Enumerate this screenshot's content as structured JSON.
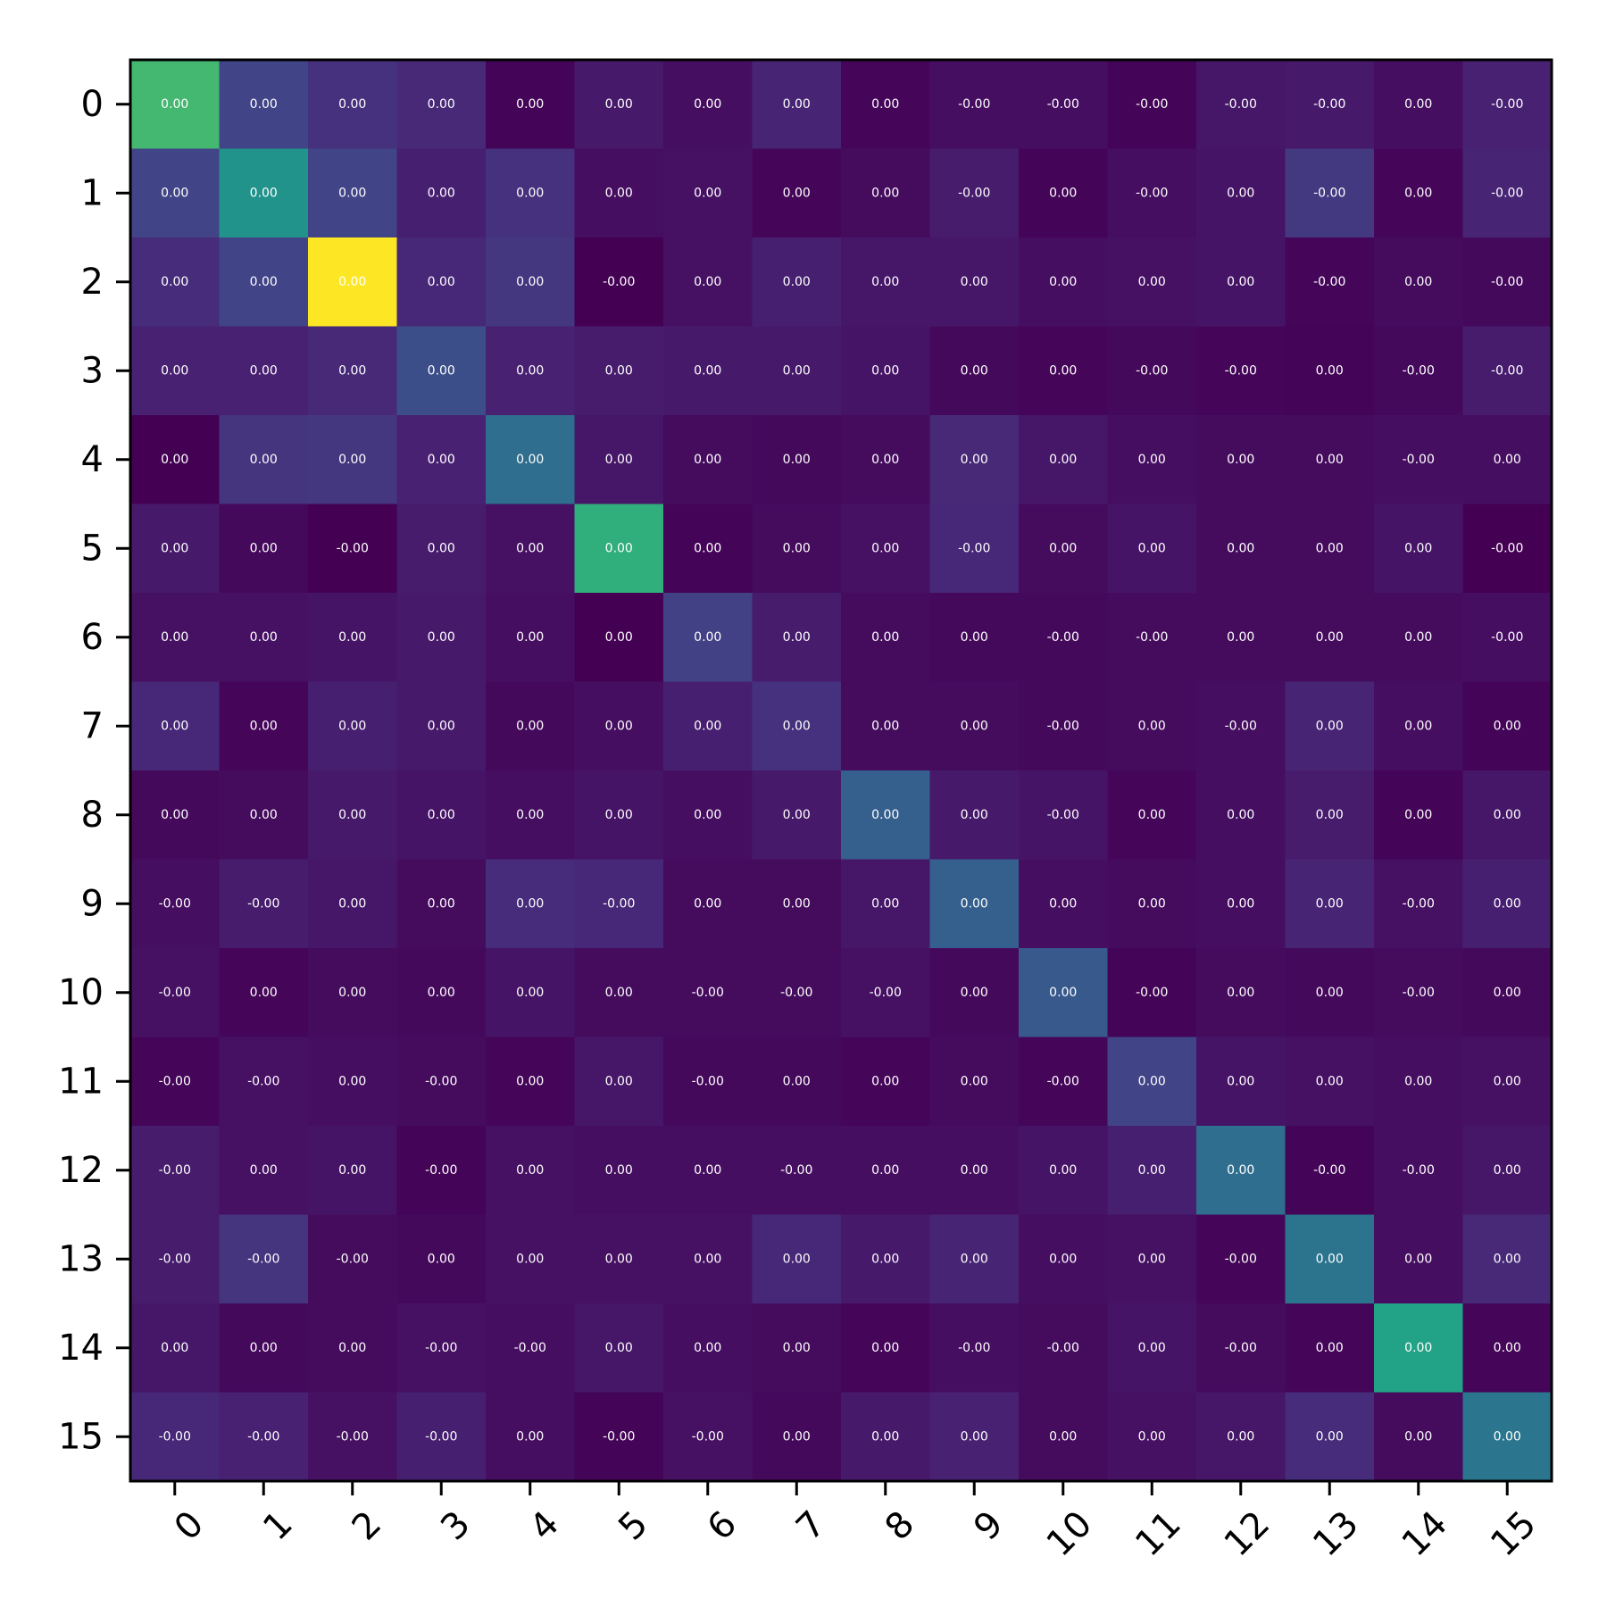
{
  "chart_data": {
    "type": "heatmap",
    "colormap": "viridis",
    "x_tick_labels": [
      "0",
      "1",
      "2",
      "3",
      "4",
      "5",
      "6",
      "7",
      "8",
      "9",
      "10",
      "11",
      "12",
      "13",
      "14",
      "15"
    ],
    "y_tick_labels": [
      "0",
      "1",
      "2",
      "3",
      "4",
      "5",
      "6",
      "7",
      "8",
      "9",
      "10",
      "11",
      "12",
      "13",
      "14",
      "15"
    ],
    "x_tick_rotation": -45,
    "cell_labels": [
      [
        "0.00",
        "0.00",
        "0.00",
        "0.00",
        "0.00",
        "0.00",
        "0.00",
        "0.00",
        "0.00",
        "-0.00",
        "-0.00",
        "-0.00",
        "-0.00",
        "-0.00",
        "0.00",
        "-0.00"
      ],
      [
        "0.00",
        "0.00",
        "0.00",
        "0.00",
        "0.00",
        "0.00",
        "0.00",
        "0.00",
        "0.00",
        "-0.00",
        "0.00",
        "-0.00",
        "0.00",
        "-0.00",
        "0.00",
        "-0.00"
      ],
      [
        "0.00",
        "0.00",
        "0.00",
        "0.00",
        "0.00",
        "-0.00",
        "0.00",
        "0.00",
        "0.00",
        "0.00",
        "0.00",
        "0.00",
        "0.00",
        "-0.00",
        "0.00",
        "-0.00"
      ],
      [
        "0.00",
        "0.00",
        "0.00",
        "0.00",
        "0.00",
        "0.00",
        "0.00",
        "0.00",
        "0.00",
        "0.00",
        "0.00",
        "-0.00",
        "-0.00",
        "0.00",
        "-0.00",
        "-0.00"
      ],
      [
        "0.00",
        "0.00",
        "0.00",
        "0.00",
        "0.00",
        "0.00",
        "0.00",
        "0.00",
        "0.00",
        "0.00",
        "0.00",
        "0.00",
        "0.00",
        "0.00",
        "-0.00",
        "0.00"
      ],
      [
        "0.00",
        "0.00",
        "-0.00",
        "0.00",
        "0.00",
        "0.00",
        "0.00",
        "0.00",
        "0.00",
        "-0.00",
        "0.00",
        "0.00",
        "0.00",
        "0.00",
        "0.00",
        "-0.00"
      ],
      [
        "0.00",
        "0.00",
        "0.00",
        "0.00",
        "0.00",
        "0.00",
        "0.00",
        "0.00",
        "0.00",
        "0.00",
        "-0.00",
        "-0.00",
        "0.00",
        "0.00",
        "0.00",
        "-0.00"
      ],
      [
        "0.00",
        "0.00",
        "0.00",
        "0.00",
        "0.00",
        "0.00",
        "0.00",
        "0.00",
        "0.00",
        "0.00",
        "-0.00",
        "0.00",
        "-0.00",
        "0.00",
        "0.00",
        "0.00"
      ],
      [
        "0.00",
        "0.00",
        "0.00",
        "0.00",
        "0.00",
        "0.00",
        "0.00",
        "0.00",
        "0.00",
        "0.00",
        "-0.00",
        "0.00",
        "0.00",
        "0.00",
        "0.00",
        "0.00"
      ],
      [
        "-0.00",
        "-0.00",
        "0.00",
        "0.00",
        "0.00",
        "-0.00",
        "0.00",
        "0.00",
        "0.00",
        "0.00",
        "0.00",
        "0.00",
        "0.00",
        "0.00",
        "-0.00",
        "0.00"
      ],
      [
        "-0.00",
        "0.00",
        "0.00",
        "0.00",
        "0.00",
        "0.00",
        "-0.00",
        "-0.00",
        "-0.00",
        "0.00",
        "0.00",
        "-0.00",
        "0.00",
        "0.00",
        "-0.00",
        "0.00"
      ],
      [
        "-0.00",
        "-0.00",
        "0.00",
        "-0.00",
        "0.00",
        "0.00",
        "-0.00",
        "0.00",
        "0.00",
        "0.00",
        "-0.00",
        "0.00",
        "0.00",
        "0.00",
        "0.00",
        "0.00"
      ],
      [
        "-0.00",
        "0.00",
        "0.00",
        "-0.00",
        "0.00",
        "0.00",
        "0.00",
        "-0.00",
        "0.00",
        "0.00",
        "0.00",
        "0.00",
        "0.00",
        "-0.00",
        "-0.00",
        "0.00"
      ],
      [
        "-0.00",
        "-0.00",
        "-0.00",
        "0.00",
        "0.00",
        "0.00",
        "0.00",
        "0.00",
        "0.00",
        "0.00",
        "0.00",
        "0.00",
        "-0.00",
        "0.00",
        "0.00",
        "0.00"
      ],
      [
        "0.00",
        "0.00",
        "0.00",
        "-0.00",
        "-0.00",
        "0.00",
        "0.00",
        "0.00",
        "0.00",
        "-0.00",
        "-0.00",
        "0.00",
        "-0.00",
        "0.00",
        "0.00",
        "0.00"
      ],
      [
        "-0.00",
        "-0.00",
        "-0.00",
        "-0.00",
        "0.00",
        "-0.00",
        "-0.00",
        "0.00",
        "0.00",
        "0.00",
        "0.00",
        "0.00",
        "0.00",
        "0.00",
        "0.00",
        "0.00"
      ]
    ],
    "color_scale_levels": [
      [
        0.8,
        0.25,
        0.18,
        0.15,
        0.01,
        0.09,
        0.05,
        0.13,
        0.02,
        0.05,
        0.05,
        0.01,
        0.08,
        0.09,
        0.05,
        0.12
      ],
      [
        0.25,
        0.64,
        0.25,
        0.11,
        0.18,
        0.05,
        0.06,
        0.02,
        0.04,
        0.1,
        0.01,
        0.05,
        0.07,
        0.21,
        0.02,
        0.13
      ],
      [
        0.16,
        0.25,
        1.0,
        0.14,
        0.2,
        0.0,
        0.06,
        0.11,
        0.08,
        0.08,
        0.05,
        0.06,
        0.07,
        0.02,
        0.04,
        0.03
      ],
      [
        0.12,
        0.12,
        0.15,
        0.3,
        0.12,
        0.1,
        0.09,
        0.09,
        0.07,
        0.03,
        0.02,
        0.03,
        0.02,
        0.01,
        0.03,
        0.1
      ],
      [
        0.0,
        0.19,
        0.2,
        0.12,
        0.45,
        0.08,
        0.04,
        0.03,
        0.04,
        0.15,
        0.08,
        0.05,
        0.04,
        0.04,
        0.05,
        0.05
      ],
      [
        0.09,
        0.03,
        0.0,
        0.1,
        0.06,
        0.77,
        0.01,
        0.04,
        0.06,
        0.14,
        0.04,
        0.07,
        0.04,
        0.04,
        0.07,
        0.0
      ],
      [
        0.06,
        0.06,
        0.07,
        0.09,
        0.05,
        0.0,
        0.24,
        0.1,
        0.04,
        0.03,
        0.03,
        0.04,
        0.04,
        0.04,
        0.04,
        0.05
      ],
      [
        0.14,
        0.02,
        0.11,
        0.09,
        0.03,
        0.05,
        0.11,
        0.18,
        0.04,
        0.04,
        0.03,
        0.04,
        0.05,
        0.13,
        0.05,
        0.01
      ],
      [
        0.03,
        0.04,
        0.09,
        0.07,
        0.05,
        0.07,
        0.05,
        0.09,
        0.38,
        0.09,
        0.07,
        0.02,
        0.05,
        0.1,
        0.01,
        0.08
      ],
      [
        0.05,
        0.1,
        0.08,
        0.04,
        0.16,
        0.14,
        0.04,
        0.04,
        0.08,
        0.38,
        0.05,
        0.04,
        0.05,
        0.13,
        0.06,
        0.11
      ],
      [
        0.06,
        0.02,
        0.04,
        0.03,
        0.07,
        0.04,
        0.04,
        0.04,
        0.06,
        0.03,
        0.35,
        0.01,
        0.04,
        0.03,
        0.04,
        0.03
      ],
      [
        0.02,
        0.06,
        0.05,
        0.04,
        0.02,
        0.08,
        0.03,
        0.03,
        0.02,
        0.04,
        0.02,
        0.25,
        0.07,
        0.06,
        0.05,
        0.06
      ],
      [
        0.1,
        0.06,
        0.07,
        0.01,
        0.06,
        0.05,
        0.05,
        0.05,
        0.05,
        0.05,
        0.07,
        0.11,
        0.45,
        0.01,
        0.05,
        0.08
      ],
      [
        0.1,
        0.19,
        0.04,
        0.03,
        0.06,
        0.06,
        0.06,
        0.14,
        0.09,
        0.13,
        0.05,
        0.06,
        0.02,
        0.48,
        0.05,
        0.15
      ],
      [
        0.08,
        0.03,
        0.04,
        0.06,
        0.05,
        0.08,
        0.05,
        0.04,
        0.02,
        0.05,
        0.04,
        0.07,
        0.04,
        0.02,
        0.72,
        0.02
      ],
      [
        0.14,
        0.12,
        0.06,
        0.11,
        0.05,
        0.01,
        0.06,
        0.03,
        0.09,
        0.12,
        0.04,
        0.06,
        0.08,
        0.16,
        0.04,
        0.49
      ]
    ]
  }
}
